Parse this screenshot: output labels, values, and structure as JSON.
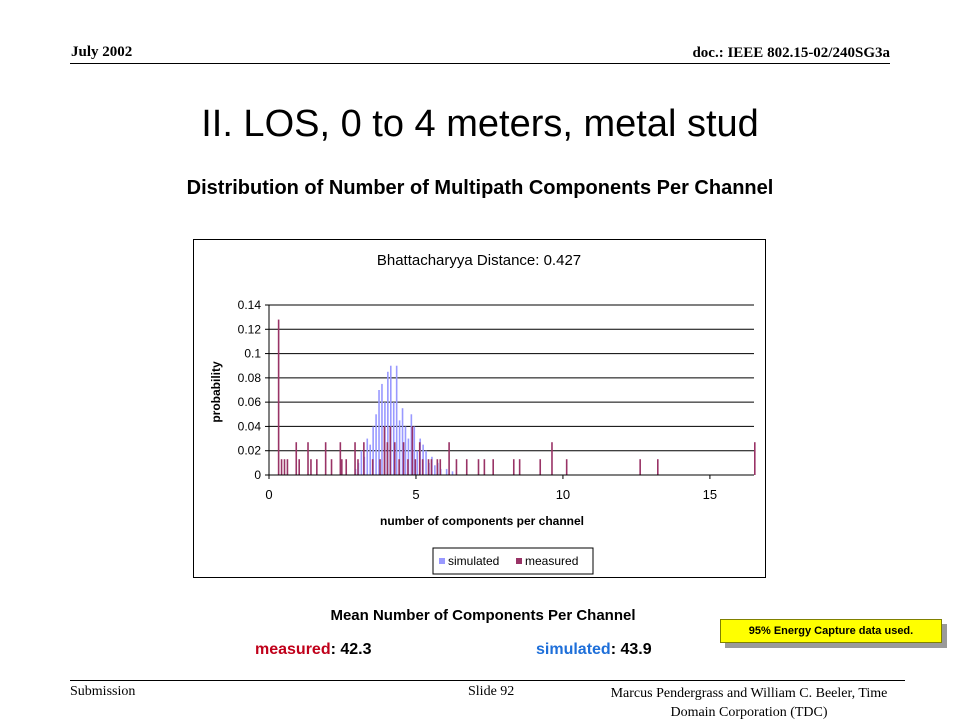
{
  "header": {
    "date": "July 2002",
    "doc": "doc.: IEEE 802.15-02/240SG3a"
  },
  "title": "II.  LOS, 0 to 4 meters, metal stud",
  "subtitle": "Distribution of Number of Multipath Components Per Channel",
  "chart_data": {
    "type": "bar",
    "title": "Bhattacharyya Distance: 0.427",
    "xlabel": "number of components per channel",
    "ylabel": "probability",
    "xlim": [
      0,
      16.5
    ],
    "ylim": [
      0,
      0.14
    ],
    "x_ticks": [
      0,
      5,
      10,
      15
    ],
    "y_ticks": [
      "0",
      "0.02",
      "0.04",
      "0.06",
      "0.08",
      "0.1",
      "0.12",
      "0.14"
    ],
    "grid": "horizontal",
    "legend_position": "bottom",
    "series": [
      {
        "name": "simulated",
        "color": "#9999ff",
        "points": [
          [
            2.95,
            0.005
          ],
          [
            3.05,
            0.01
          ],
          [
            3.15,
            0.02
          ],
          [
            3.25,
            0.015
          ],
          [
            3.35,
            0.03
          ],
          [
            3.45,
            0.025
          ],
          [
            3.55,
            0.04
          ],
          [
            3.65,
            0.05
          ],
          [
            3.75,
            0.07
          ],
          [
            3.85,
            0.075
          ],
          [
            3.95,
            0.06
          ],
          [
            4.05,
            0.085
          ],
          [
            4.15,
            0.09
          ],
          [
            4.25,
            0.06
          ],
          [
            4.35,
            0.09
          ],
          [
            4.45,
            0.045
          ],
          [
            4.55,
            0.055
          ],
          [
            4.65,
            0.04
          ],
          [
            4.75,
            0.03
          ],
          [
            4.85,
            0.05
          ],
          [
            4.95,
            0.04
          ],
          [
            5.05,
            0.02
          ],
          [
            5.15,
            0.03
          ],
          [
            5.25,
            0.025
          ],
          [
            5.35,
            0.02
          ],
          [
            5.45,
            0.01
          ],
          [
            5.55,
            0.015
          ],
          [
            5.65,
            0.008
          ],
          [
            5.75,
            0.01
          ],
          [
            5.85,
            0.005
          ],
          [
            6.05,
            0.005
          ],
          [
            6.25,
            0.003
          ]
        ]
      },
      {
        "name": "measured",
        "color": "#993366",
        "points": [
          [
            0.3,
            0.128
          ],
          [
            0.4,
            0.013
          ],
          [
            0.5,
            0.013
          ],
          [
            0.6,
            0.013
          ],
          [
            0.9,
            0.027
          ],
          [
            1.0,
            0.013
          ],
          [
            1.3,
            0.027
          ],
          [
            1.4,
            0.013
          ],
          [
            1.6,
            0.013
          ],
          [
            1.9,
            0.027
          ],
          [
            2.1,
            0.013
          ],
          [
            2.4,
            0.027
          ],
          [
            2.45,
            0.013
          ],
          [
            2.6,
            0.013
          ],
          [
            2.9,
            0.027
          ],
          [
            3.0,
            0.013
          ],
          [
            3.2,
            0.027
          ],
          [
            3.5,
            0.013
          ],
          [
            3.75,
            0.013
          ],
          [
            3.9,
            0.04
          ],
          [
            4.0,
            0.027
          ],
          [
            4.1,
            0.04
          ],
          [
            4.25,
            0.027
          ],
          [
            4.4,
            0.013
          ],
          [
            4.55,
            0.027
          ],
          [
            4.7,
            0.013
          ],
          [
            4.85,
            0.04
          ],
          [
            4.95,
            0.013
          ],
          [
            5.1,
            0.027
          ],
          [
            5.2,
            0.013
          ],
          [
            5.4,
            0.013
          ],
          [
            5.5,
            0.013
          ],
          [
            5.7,
            0.013
          ],
          [
            5.8,
            0.013
          ],
          [
            6.1,
            0.027
          ],
          [
            6.35,
            0.013
          ],
          [
            6.7,
            0.013
          ],
          [
            7.1,
            0.013
          ],
          [
            7.3,
            0.013
          ],
          [
            7.6,
            0.013
          ],
          [
            8.3,
            0.013
          ],
          [
            8.5,
            0.013
          ],
          [
            9.2,
            0.013
          ],
          [
            9.6,
            0.027
          ],
          [
            10.1,
            0.013
          ],
          [
            12.6,
            0.013
          ],
          [
            13.2,
            0.013
          ],
          [
            16.5,
            0.027
          ]
        ]
      }
    ]
  },
  "mean": {
    "title": "Mean Number of Components Per Channel",
    "measured_label": "measured",
    "measured_value": ": 42.3",
    "simulated_label": "simulated",
    "simulated_value": ": 43.9"
  },
  "note": "95% Energy Capture data used.",
  "footer": {
    "submission": "Submission",
    "slide": "Slide 92",
    "author": "Marcus Pendergrass and William  C. Beeler, Time Domain Corporation (TDC)"
  }
}
